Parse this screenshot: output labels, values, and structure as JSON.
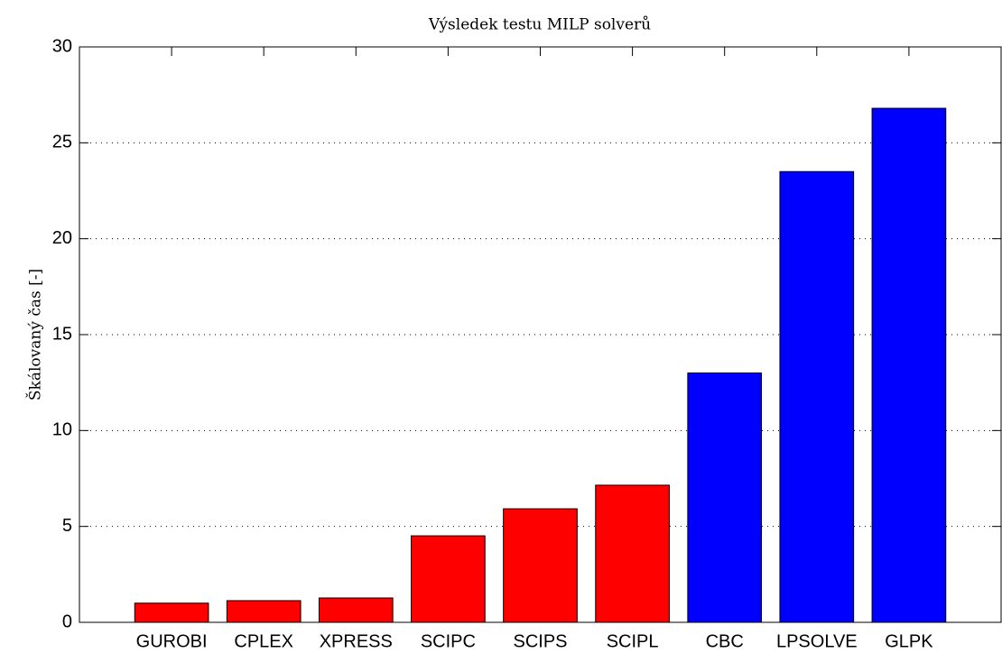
{
  "chart_data": {
    "type": "bar",
    "title": "Výsledek testu MILP solverů",
    "ylabel": "Škálovaný čas [-]",
    "categories": [
      "GUROBI",
      "CPLEX",
      "XPRESS",
      "SCIPC",
      "SCIPS",
      "SCIPL",
      "CBC",
      "LPSOLVE",
      "GLPK"
    ],
    "values": [
      1.0,
      1.13,
      1.27,
      4.51,
      5.92,
      7.15,
      13.0,
      23.5,
      26.8
    ],
    "colors": [
      "#ff0000",
      "#ff0000",
      "#ff0000",
      "#ff0000",
      "#ff0000",
      "#ff0000",
      "#0000ff",
      "#0000ff",
      "#0000ff"
    ],
    "ylim": [
      0,
      30
    ],
    "yticks": [
      0,
      5,
      10,
      15,
      20,
      25,
      30
    ],
    "grid": true
  }
}
